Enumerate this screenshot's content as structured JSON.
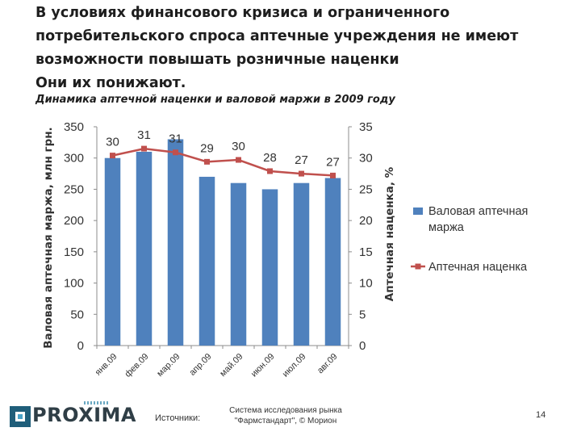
{
  "slide": {
    "headline_lines": [
      "В условиях финансового кризиса и ограниченного",
      "потребительского спроса аптечные учреждения не имеют",
      "возможности повышать розничные наценки",
      "Они их понижают."
    ],
    "subtitle": "Динамика аптечной наценки и валовой маржи в 2009 году",
    "logo_text": "PROXIMA",
    "sources_label": "Источники:",
    "source_lines": [
      "Система исследования рынка",
      "\"Фармстандарт\", © Морион"
    ],
    "page_number": "14"
  },
  "chart_data": {
    "type": "bar+line",
    "categories": [
      "янв.09",
      "фев.09",
      "мар.09",
      "апр.09",
      "май.09",
      "июн.09",
      "июл.09",
      "авг.09"
    ],
    "series": [
      {
        "name": "Валовая аптечная маржа",
        "type": "bar",
        "axis": "left",
        "color": "#4f81bd",
        "values": [
          300,
          310,
          330,
          270,
          260,
          250,
          260,
          268
        ]
      },
      {
        "name": "Аптечная наценка",
        "type": "line",
        "axis": "right",
        "color": "#c0504d",
        "values": [
          30.4,
          31.5,
          30.9,
          29.4,
          29.7,
          27.9,
          27.5,
          27.2
        ],
        "data_labels": [
          "30",
          "31",
          "31",
          "29",
          "30",
          "28",
          "27",
          "27"
        ]
      }
    ],
    "legend_labels": [
      "Валовая аптечная маржа",
      "Аптечная наценка"
    ],
    "ylabel": "Валовая аптечная маржа, млн грн.",
    "y2label": "Аптечная наценка, %",
    "ylim": [
      0,
      350
    ],
    "y2lim": [
      0,
      35
    ],
    "yticks": [
      "0",
      "50",
      "100",
      "150",
      "200",
      "250",
      "300",
      "350"
    ],
    "y2ticks": [
      "0",
      "5",
      "10",
      "15",
      "20",
      "25",
      "30",
      "35"
    ],
    "legend_position": "right",
    "grid": false
  }
}
